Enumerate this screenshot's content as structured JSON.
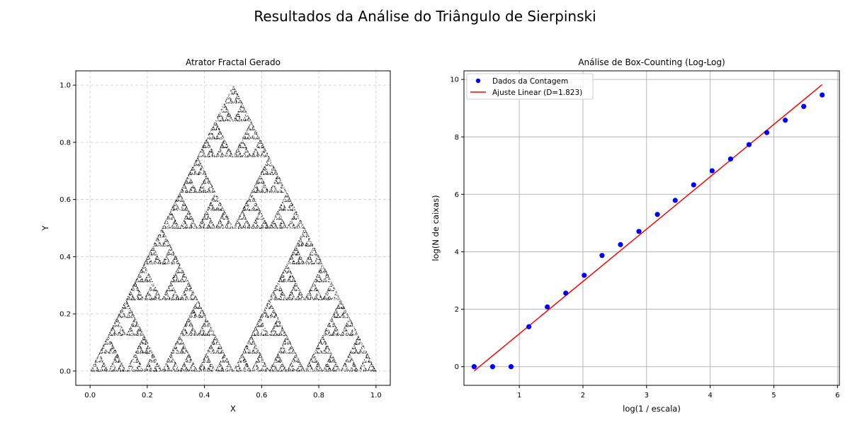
{
  "figure": {
    "suptitle": "Resultados da Análise do Triângulo de Sierpinski"
  },
  "chart_data": [
    {
      "type": "scatter",
      "title": "Atrator Fractal Gerado",
      "xlabel": "X",
      "ylabel": "Y",
      "xlim": [
        -0.05,
        1.05
      ],
      "ylim": [
        -0.05,
        1.05
      ],
      "xticks": [
        0.0,
        0.2,
        0.4,
        0.6,
        0.8,
        1.0
      ],
      "yticks": [
        0.0,
        0.2,
        0.4,
        0.6,
        0.8,
        1.0
      ],
      "xtick_labels": [
        "0.0",
        "0.2",
        "0.4",
        "0.6",
        "0.8",
        "1.0"
      ],
      "ytick_labels": [
        "0.0",
        "0.2",
        "0.4",
        "0.6",
        "0.8",
        "1.0"
      ],
      "grid": true,
      "grid_style": "dashed",
      "vertices": [
        [
          0,
          0
        ],
        [
          1,
          0
        ],
        [
          0.5,
          1
        ]
      ],
      "color": "#000000"
    },
    {
      "type": "scatter",
      "title": "Análise de Box-Counting (Log-Log)",
      "xlabel": "log(1 / escala)",
      "ylabel": "log(N de caixas)",
      "xlim": [
        0.13,
        6.03
      ],
      "ylim": [
        -0.65,
        10.3
      ],
      "xticks": [
        1,
        2,
        3,
        4,
        5,
        6
      ],
      "yticks": [
        0,
        2,
        4,
        6,
        8,
        10
      ],
      "xtick_labels": [
        "1",
        "2",
        "3",
        "4",
        "5",
        "6"
      ],
      "ytick_labels": [
        "0",
        "2",
        "4",
        "6",
        "8",
        "10"
      ],
      "grid": true,
      "grid_style": "solid",
      "legend_placement": "top-left",
      "series": [
        {
          "name": "Dados da Contagem",
          "kind": "points",
          "color": "#0000ff",
          "x": [
            0.29,
            0.58,
            0.87,
            1.15,
            1.44,
            1.73,
            2.02,
            2.3,
            2.59,
            2.88,
            3.17,
            3.45,
            3.74,
            4.03,
            4.32,
            4.61,
            4.89,
            5.18,
            5.47,
            5.76
          ],
          "y": [
            0.0,
            0.0,
            0.0,
            1.39,
            2.08,
            2.56,
            3.18,
            3.87,
            4.25,
            4.71,
            5.3,
            5.79,
            6.33,
            6.82,
            7.23,
            7.73,
            8.15,
            8.58,
            9.06,
            9.46
          ]
        },
        {
          "name": "Ajuste Linear (D=1.823)",
          "kind": "line",
          "color": "#ff0000",
          "x": [
            0.29,
            5.76
          ],
          "y": [
            -0.15,
            9.82
          ]
        }
      ]
    }
  ]
}
